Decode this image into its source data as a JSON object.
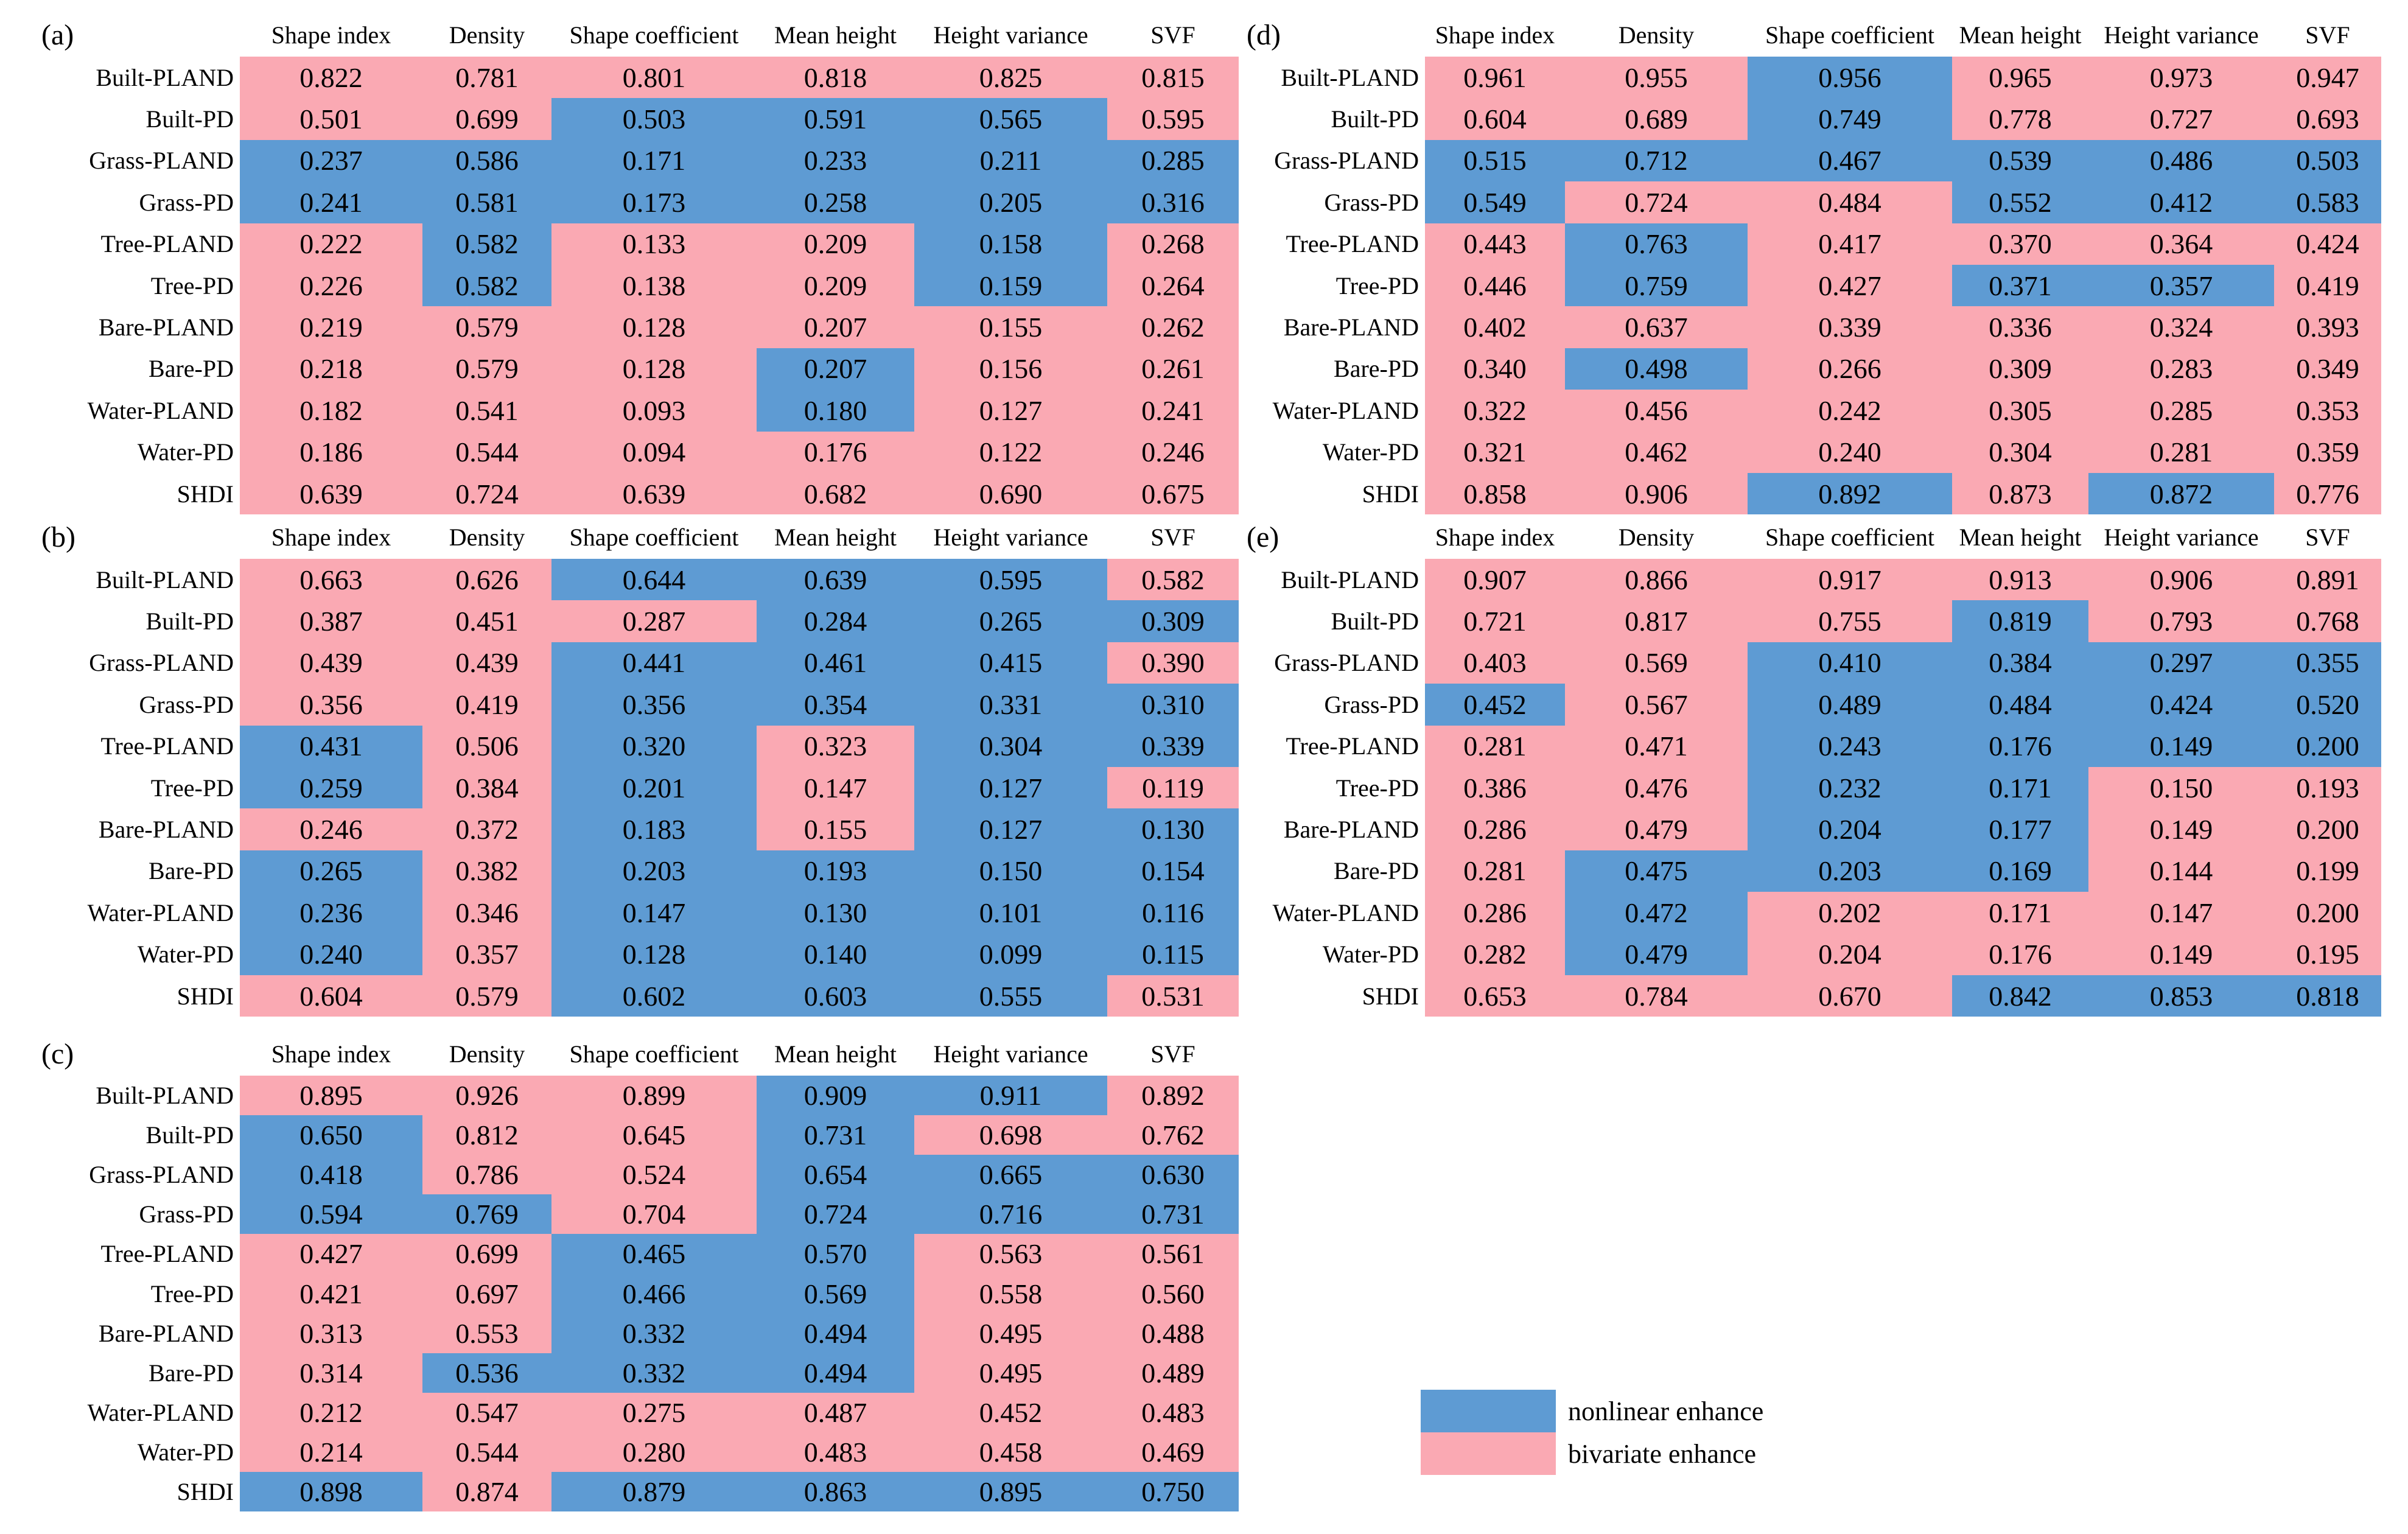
{
  "chart_data": {
    "type": "heatmap-table",
    "title": "",
    "columns": [
      "Shape index",
      "Density",
      "Shape coefficient",
      "Mean height",
      "Height variance",
      "SVF"
    ],
    "row_labels": [
      "Built-PLAND",
      "Built-PD",
      "Grass-PLAND",
      "Grass-PD",
      "Tree-PLAND",
      "Tree-PD",
      "Bare-PLAND",
      "Bare-PD",
      "Water-PLAND",
      "Water-PD",
      "SHDI"
    ],
    "colors": {
      "nonlinear_blue": "#5E9BD3",
      "bivariate_pink": "#FAA9B3"
    },
    "legend": [
      {
        "label": "nonlinear enhance",
        "color": "#5E9BD3",
        "key": "b"
      },
      {
        "label": "bivariate enhance",
        "color": "#FAA9B3",
        "key": "p"
      }
    ],
    "fill_key": {
      "b": "nonlinear enhance",
      "p": "bivariate enhance"
    },
    "panels": [
      {
        "tag": "(a)",
        "values": [
          [
            "0.822",
            "0.781",
            "0.801",
            "0.818",
            "0.825",
            "0.815"
          ],
          [
            "0.501",
            "0.699",
            "0.503",
            "0.591",
            "0.565",
            "0.595"
          ],
          [
            "0.237",
            "0.586",
            "0.171",
            "0.233",
            "0.211",
            "0.285"
          ],
          [
            "0.241",
            "0.581",
            "0.173",
            "0.258",
            "0.205",
            "0.316"
          ],
          [
            "0.222",
            "0.582",
            "0.133",
            "0.209",
            "0.158",
            "0.268"
          ],
          [
            "0.226",
            "0.582",
            "0.138",
            "0.209",
            "0.159",
            "0.264"
          ],
          [
            "0.219",
            "0.579",
            "0.128",
            "0.207",
            "0.155",
            "0.262"
          ],
          [
            "0.218",
            "0.579",
            "0.128",
            "0.207",
            "0.156",
            "0.261"
          ],
          [
            "0.182",
            "0.541",
            "0.093",
            "0.180",
            "0.127",
            "0.241"
          ],
          [
            "0.186",
            "0.544",
            "0.094",
            "0.176",
            "0.122",
            "0.246"
          ],
          [
            "0.639",
            "0.724",
            "0.639",
            "0.682",
            "0.690",
            "0.675"
          ]
        ],
        "fills": [
          "pppppp",
          "ppbbbp",
          "bbbbbb",
          "bbbbbb",
          "pbppbp",
          "pbppbp",
          "pppppp",
          "pppbpp",
          "pppbpp",
          "pppppp",
          "pppppp"
        ]
      },
      {
        "tag": "(b)",
        "values": [
          [
            "0.663",
            "0.626",
            "0.644",
            "0.639",
            "0.595",
            "0.582"
          ],
          [
            "0.387",
            "0.451",
            "0.287",
            "0.284",
            "0.265",
            "0.309"
          ],
          [
            "0.439",
            "0.439",
            "0.441",
            "0.461",
            "0.415",
            "0.390"
          ],
          [
            "0.356",
            "0.419",
            "0.356",
            "0.354",
            "0.331",
            "0.310"
          ],
          [
            "0.431",
            "0.506",
            "0.320",
            "0.323",
            "0.304",
            "0.339"
          ],
          [
            "0.259",
            "0.384",
            "0.201",
            "0.147",
            "0.127",
            "0.119"
          ],
          [
            "0.246",
            "0.372",
            "0.183",
            "0.155",
            "0.127",
            "0.130"
          ],
          [
            "0.265",
            "0.382",
            "0.203",
            "0.193",
            "0.150",
            "0.154"
          ],
          [
            "0.236",
            "0.346",
            "0.147",
            "0.130",
            "0.101",
            "0.116"
          ],
          [
            "0.240",
            "0.357",
            "0.128",
            "0.140",
            "0.099",
            "0.115"
          ],
          [
            "0.604",
            "0.579",
            "0.602",
            "0.603",
            "0.555",
            "0.531"
          ]
        ],
        "fills": [
          "ppbbbp",
          "pppbbb",
          "ppbbbp",
          "ppbbbb",
          "bpbpbb",
          "bpbpbp",
          "ppbpbb",
          "bpbbbb",
          "bpbbbb",
          "bpbbbb",
          "ppbbbp"
        ]
      },
      {
        "tag": "(c)",
        "values": [
          [
            "0.895",
            "0.926",
            "0.899",
            "0.909",
            "0.911",
            "0.892"
          ],
          [
            "0.650",
            "0.812",
            "0.645",
            "0.731",
            "0.698",
            "0.762"
          ],
          [
            "0.418",
            "0.786",
            "0.524",
            "0.654",
            "0.665",
            "0.630"
          ],
          [
            "0.594",
            "0.769",
            "0.704",
            "0.724",
            "0.716",
            "0.731"
          ],
          [
            "0.427",
            "0.699",
            "0.465",
            "0.570",
            "0.563",
            "0.561"
          ],
          [
            "0.421",
            "0.697",
            "0.466",
            "0.569",
            "0.558",
            "0.560"
          ],
          [
            "0.313",
            "0.553",
            "0.332",
            "0.494",
            "0.495",
            "0.488"
          ],
          [
            "0.314",
            "0.536",
            "0.332",
            "0.494",
            "0.495",
            "0.489"
          ],
          [
            "0.212",
            "0.547",
            "0.275",
            "0.487",
            "0.452",
            "0.483"
          ],
          [
            "0.214",
            "0.544",
            "0.280",
            "0.483",
            "0.458",
            "0.469"
          ],
          [
            "0.898",
            "0.874",
            "0.879",
            "0.863",
            "0.895",
            "0.750"
          ]
        ],
        "fills": [
          "pppbbp",
          "bppbpp",
          "bppbbb",
          "bbpbbb",
          "ppbbpp",
          "ppbbpp",
          "ppbbpp",
          "pbbbpp",
          "pppppp",
          "pppppp",
          "bpbbbb"
        ]
      },
      {
        "tag": "(d)",
        "values": [
          [
            "0.961",
            "0.955",
            "0.956",
            "0.965",
            "0.973",
            "0.947"
          ],
          [
            "0.604",
            "0.689",
            "0.749",
            "0.778",
            "0.727",
            "0.693"
          ],
          [
            "0.515",
            "0.712",
            "0.467",
            "0.539",
            "0.486",
            "0.503"
          ],
          [
            "0.549",
            "0.724",
            "0.484",
            "0.552",
            "0.412",
            "0.583"
          ],
          [
            "0.443",
            "0.763",
            "0.417",
            "0.370",
            "0.364",
            "0.424"
          ],
          [
            "0.446",
            "0.759",
            "0.427",
            "0.371",
            "0.357",
            "0.419"
          ],
          [
            "0.402",
            "0.637",
            "0.339",
            "0.336",
            "0.324",
            "0.393"
          ],
          [
            "0.340",
            "0.498",
            "0.266",
            "0.309",
            "0.283",
            "0.349"
          ],
          [
            "0.322",
            "0.456",
            "0.242",
            "0.305",
            "0.285",
            "0.353"
          ],
          [
            "0.321",
            "0.462",
            "0.240",
            "0.304",
            "0.281",
            "0.359"
          ],
          [
            "0.858",
            "0.906",
            "0.892",
            "0.873",
            "0.872",
            "0.776"
          ]
        ],
        "fills": [
          "ppbppp",
          "ppbppp",
          "bbbbbb",
          "bppbbb",
          "pbpppp",
          "pbpbbp",
          "pppppp",
          "pbpppp",
          "pppppp",
          "pppppp",
          "ppbpbp"
        ]
      },
      {
        "tag": "(e)",
        "values": [
          [
            "0.907",
            "0.866",
            "0.917",
            "0.913",
            "0.906",
            "0.891"
          ],
          [
            "0.721",
            "0.817",
            "0.755",
            "0.819",
            "0.793",
            "0.768"
          ],
          [
            "0.403",
            "0.569",
            "0.410",
            "0.384",
            "0.297",
            "0.355"
          ],
          [
            "0.452",
            "0.567",
            "0.489",
            "0.484",
            "0.424",
            "0.520"
          ],
          [
            "0.281",
            "0.471",
            "0.243",
            "0.176",
            "0.149",
            "0.200"
          ],
          [
            "0.386",
            "0.476",
            "0.232",
            "0.171",
            "0.150",
            "0.193"
          ],
          [
            "0.286",
            "0.479",
            "0.204",
            "0.177",
            "0.149",
            "0.200"
          ],
          [
            "0.281",
            "0.475",
            "0.203",
            "0.169",
            "0.144",
            "0.199"
          ],
          [
            "0.286",
            "0.472",
            "0.202",
            "0.171",
            "0.147",
            "0.200"
          ],
          [
            "0.282",
            "0.479",
            "0.204",
            "0.176",
            "0.149",
            "0.195"
          ],
          [
            "0.653",
            "0.784",
            "0.670",
            "0.842",
            "0.853",
            "0.818"
          ]
        ],
        "fills": [
          "pppppp",
          "pppbpp",
          "ppbbbb",
          "bpbbbb",
          "ppbbbb",
          "ppbbpp",
          "ppbbpp",
          "pbbbpp",
          "pbpppp",
          "pbpppp",
          "pppbbb"
        ]
      }
    ]
  }
}
